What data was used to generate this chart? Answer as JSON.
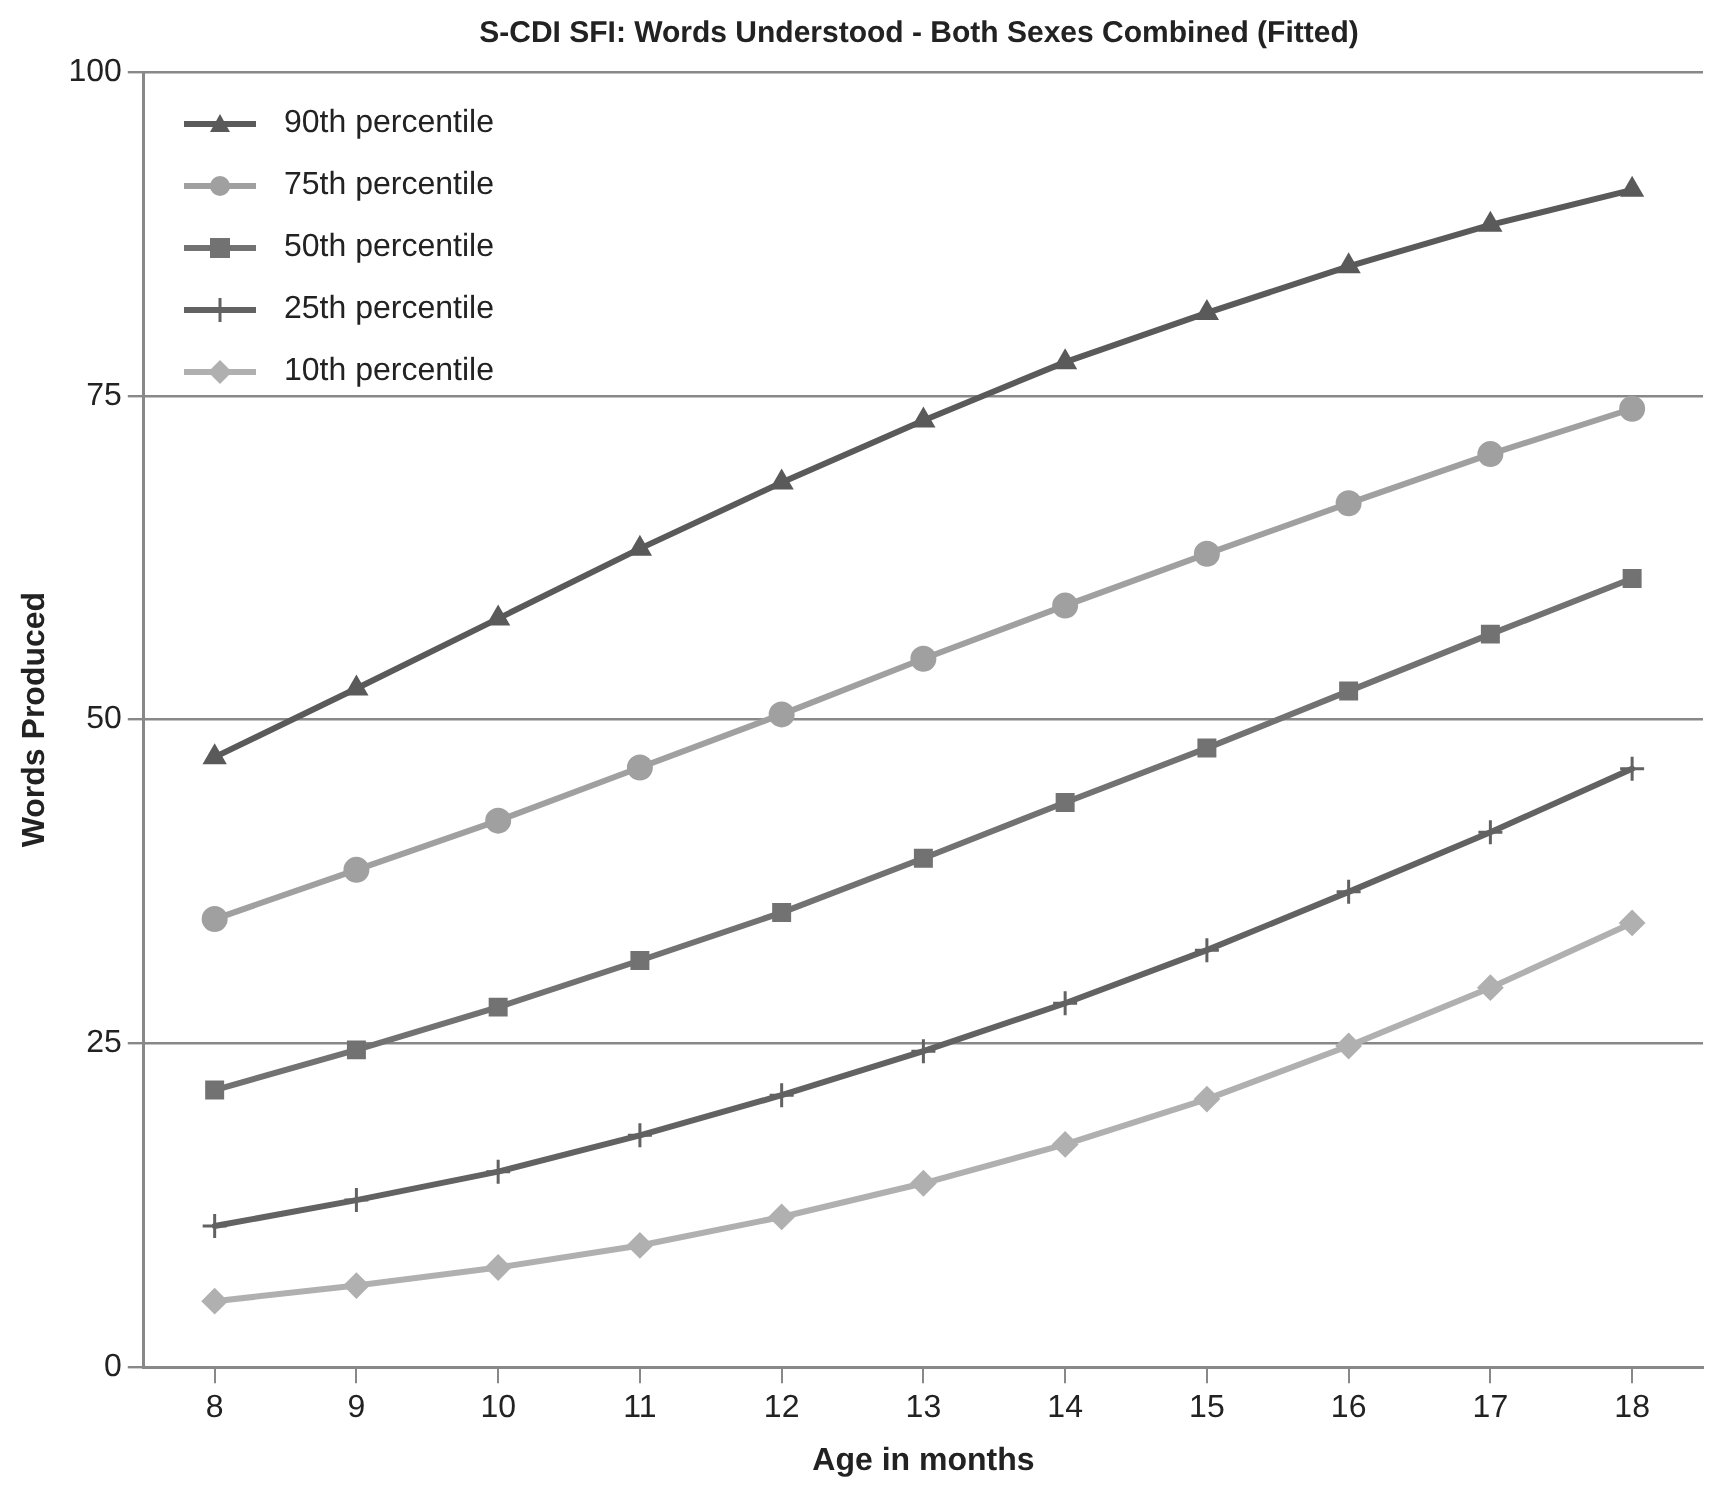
{
  "chart_data": {
    "type": "line",
    "title": "S-CDI SFI: Words Understood - Both Sexes Combined (Fitted)",
    "xlabel": "Age in months",
    "ylabel": "Words Produced",
    "categories": [
      "8",
      "9",
      "10",
      "11",
      "12",
      "13",
      "14",
      "15",
      "16",
      "17",
      "18"
    ],
    "ylim": [
      0,
      100
    ],
    "yticks": [
      0,
      25,
      50,
      75,
      100
    ],
    "grid": "y",
    "legend": "top left",
    "series": [
      {
        "name": "90th percentile",
        "color": "#5a5a5a",
        "marker": "triangle",
        "values": [
          47.1,
          52.4,
          57.8,
          63.2,
          68.3,
          73.1,
          77.6,
          81.4,
          85.0,
          88.2,
          90.9
        ]
      },
      {
        "name": "75th percentile",
        "color": "#a0a0a0",
        "marker": "circle",
        "values": [
          34.6,
          38.4,
          42.2,
          46.3,
          50.4,
          54.7,
          58.8,
          62.8,
          66.7,
          70.5,
          74.0
        ]
      },
      {
        "name": "50th percentile",
        "color": "#727272",
        "marker": "square",
        "values": [
          21.4,
          24.5,
          27.8,
          31.4,
          35.1,
          39.3,
          43.6,
          47.8,
          52.2,
          56.6,
          60.9
        ]
      },
      {
        "name": "25th percentile",
        "color": "#626262",
        "marker": "cross",
        "values": [
          10.9,
          12.9,
          15.1,
          17.9,
          21.0,
          24.4,
          28.1,
          32.2,
          36.7,
          41.3,
          46.2
        ]
      },
      {
        "name": "10th percentile",
        "color": "#b0b0b0",
        "marker": "diamond",
        "values": [
          5.1,
          6.3,
          7.7,
          9.4,
          11.6,
          14.2,
          17.2,
          20.7,
          24.8,
          29.3,
          34.3
        ]
      }
    ]
  }
}
